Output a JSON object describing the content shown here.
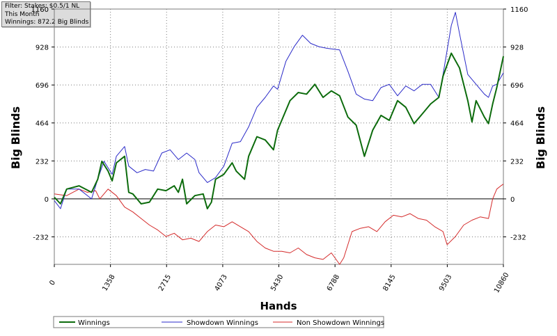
{
  "filter_box": {
    "line1": "Filter: Stakes: $0.5/1 NL",
    "line2": "This Month",
    "line3": "Winnings: 872.2 Big Blinds"
  },
  "colors": {
    "winnings": "#0c6b0c",
    "showdown": "#2a2ac8",
    "non_showdown": "#d42a2a",
    "grid": "#7a7a7a",
    "zero_line": "#000000"
  },
  "chart_data": {
    "type": "line",
    "xlabel": "Hands",
    "ylabel_left": "Big Blinds",
    "ylabel_right": "Big Blinds",
    "xlim": [
      0,
      10860
    ],
    "ylim": [
      -400,
      1160
    ],
    "x_ticks": [
      0,
      1358,
      2715,
      4073,
      5430,
      6788,
      8145,
      9503,
      10860
    ],
    "y_ticks": [
      -232,
      0,
      232,
      464,
      696,
      928,
      1160
    ],
    "grid": true,
    "legend_position": "bottom",
    "series": [
      {
        "name": "Winnings",
        "color": "#0c6b0c",
        "points": [
          [
            0,
            10
          ],
          [
            150,
            -30
          ],
          [
            300,
            60
          ],
          [
            600,
            80
          ],
          [
            900,
            40
          ],
          [
            1050,
            120
          ],
          [
            1150,
            230
          ],
          [
            1300,
            170
          ],
          [
            1400,
            110
          ],
          [
            1500,
            220
          ],
          [
            1700,
            260
          ],
          [
            1800,
            40
          ],
          [
            1900,
            30
          ],
          [
            2100,
            -30
          ],
          [
            2300,
            -20
          ],
          [
            2500,
            60
          ],
          [
            2700,
            50
          ],
          [
            2900,
            80
          ],
          [
            3000,
            40
          ],
          [
            3100,
            120
          ],
          [
            3200,
            -30
          ],
          [
            3400,
            20
          ],
          [
            3600,
            30
          ],
          [
            3700,
            -60
          ],
          [
            3800,
            -20
          ],
          [
            3900,
            120
          ],
          [
            4100,
            150
          ],
          [
            4300,
            220
          ],
          [
            4400,
            170
          ],
          [
            4600,
            120
          ],
          [
            4700,
            260
          ],
          [
            4900,
            380
          ],
          [
            5100,
            360
          ],
          [
            5300,
            300
          ],
          [
            5400,
            420
          ],
          [
            5700,
            600
          ],
          [
            5900,
            650
          ],
          [
            6100,
            640
          ],
          [
            6300,
            700
          ],
          [
            6500,
            620
          ],
          [
            6700,
            660
          ],
          [
            6900,
            630
          ],
          [
            7100,
            500
          ],
          [
            7300,
            450
          ],
          [
            7500,
            260
          ],
          [
            7700,
            420
          ],
          [
            7900,
            510
          ],
          [
            8100,
            480
          ],
          [
            8300,
            600
          ],
          [
            8500,
            560
          ],
          [
            8700,
            460
          ],
          [
            8900,
            520
          ],
          [
            9100,
            580
          ],
          [
            9300,
            620
          ],
          [
            9400,
            750
          ],
          [
            9600,
            890
          ],
          [
            9800,
            800
          ],
          [
            10000,
            600
          ],
          [
            10100,
            470
          ],
          [
            10200,
            600
          ],
          [
            10400,
            500
          ],
          [
            10500,
            460
          ],
          [
            10600,
            580
          ],
          [
            10700,
            680
          ],
          [
            10860,
            872
          ]
        ]
      },
      {
        "name": "Showdown Winnings",
        "color": "#2a2ac8",
        "points": [
          [
            0,
            -10
          ],
          [
            150,
            -60
          ],
          [
            300,
            60
          ],
          [
            600,
            60
          ],
          [
            900,
            0
          ],
          [
            1050,
            120
          ],
          [
            1200,
            230
          ],
          [
            1400,
            150
          ],
          [
            1500,
            260
          ],
          [
            1700,
            320
          ],
          [
            1800,
            200
          ],
          [
            2000,
            160
          ],
          [
            2200,
            180
          ],
          [
            2400,
            170
          ],
          [
            2600,
            280
          ],
          [
            2800,
            300
          ],
          [
            3000,
            240
          ],
          [
            3200,
            280
          ],
          [
            3400,
            240
          ],
          [
            3500,
            160
          ],
          [
            3700,
            100
          ],
          [
            3900,
            130
          ],
          [
            4100,
            200
          ],
          [
            4300,
            340
          ],
          [
            4500,
            350
          ],
          [
            4700,
            440
          ],
          [
            4900,
            560
          ],
          [
            5100,
            620
          ],
          [
            5300,
            690
          ],
          [
            5400,
            670
          ],
          [
            5600,
            840
          ],
          [
            5800,
            930
          ],
          [
            6000,
            1000
          ],
          [
            6200,
            950
          ],
          [
            6400,
            930
          ],
          [
            6600,
            920
          ],
          [
            6900,
            910
          ],
          [
            7100,
            780
          ],
          [
            7300,
            640
          ],
          [
            7500,
            610
          ],
          [
            7700,
            600
          ],
          [
            7900,
            680
          ],
          [
            8100,
            700
          ],
          [
            8300,
            630
          ],
          [
            8500,
            690
          ],
          [
            8700,
            660
          ],
          [
            8900,
            700
          ],
          [
            9100,
            700
          ],
          [
            9300,
            620
          ],
          [
            9400,
            760
          ],
          [
            9600,
            1060
          ],
          [
            9700,
            1140
          ],
          [
            9800,
            1010
          ],
          [
            10000,
            760
          ],
          [
            10200,
            700
          ],
          [
            10400,
            640
          ],
          [
            10500,
            620
          ],
          [
            10600,
            690
          ],
          [
            10700,
            700
          ],
          [
            10860,
            770
          ]
        ]
      },
      {
        "name": "Non Showdown Winnings",
        "color": "#d42a2a",
        "points": [
          [
            0,
            30
          ],
          [
            300,
            20
          ],
          [
            600,
            60
          ],
          [
            800,
            40
          ],
          [
            1000,
            50
          ],
          [
            1100,
            0
          ],
          [
            1300,
            60
          ],
          [
            1500,
            20
          ],
          [
            1700,
            -50
          ],
          [
            1900,
            -80
          ],
          [
            2100,
            -120
          ],
          [
            2300,
            -160
          ],
          [
            2500,
            -190
          ],
          [
            2700,
            -230
          ],
          [
            2900,
            -210
          ],
          [
            3100,
            -250
          ],
          [
            3300,
            -240
          ],
          [
            3500,
            -260
          ],
          [
            3700,
            -200
          ],
          [
            3900,
            -160
          ],
          [
            4100,
            -170
          ],
          [
            4300,
            -140
          ],
          [
            4500,
            -170
          ],
          [
            4700,
            -200
          ],
          [
            4900,
            -260
          ],
          [
            5100,
            -300
          ],
          [
            5300,
            -320
          ],
          [
            5500,
            -320
          ],
          [
            5700,
            -330
          ],
          [
            5900,
            -300
          ],
          [
            6100,
            -340
          ],
          [
            6300,
            -360
          ],
          [
            6500,
            -370
          ],
          [
            6700,
            -330
          ],
          [
            6900,
            -400
          ],
          [
            7000,
            -360
          ],
          [
            7200,
            -200
          ],
          [
            7400,
            -180
          ],
          [
            7600,
            -170
          ],
          [
            7800,
            -200
          ],
          [
            8000,
            -140
          ],
          [
            8200,
            -100
          ],
          [
            8400,
            -110
          ],
          [
            8600,
            -90
          ],
          [
            8800,
            -120
          ],
          [
            9000,
            -130
          ],
          [
            9200,
            -170
          ],
          [
            9400,
            -200
          ],
          [
            9500,
            -280
          ],
          [
            9700,
            -230
          ],
          [
            9900,
            -160
          ],
          [
            10100,
            -130
          ],
          [
            10300,
            -110
          ],
          [
            10500,
            -120
          ],
          [
            10600,
            0
          ],
          [
            10700,
            60
          ],
          [
            10800,
            80
          ],
          [
            10860,
            90
          ]
        ]
      }
    ]
  }
}
